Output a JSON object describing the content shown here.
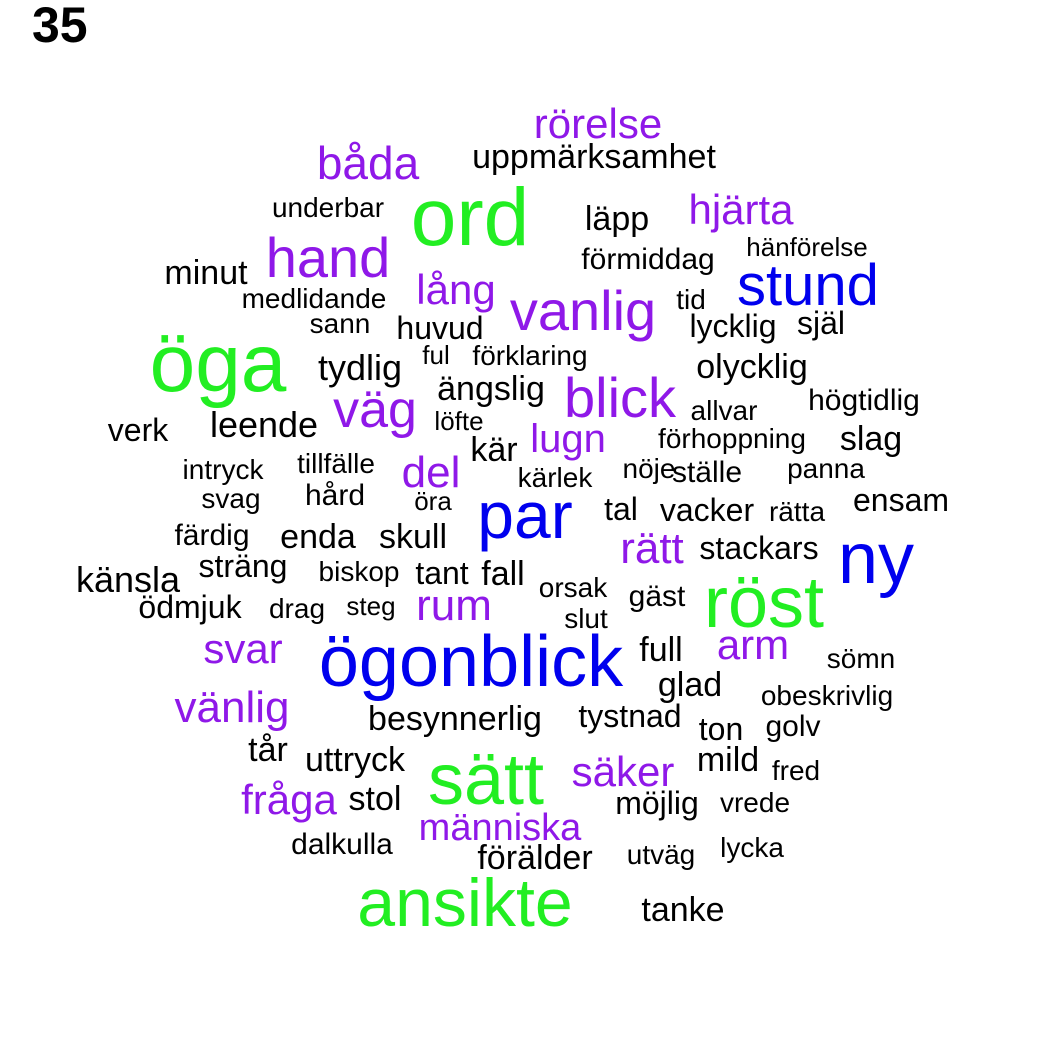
{
  "figure_label": "35",
  "colors": {
    "green": "#22ee22",
    "blue": "#0000ee",
    "purple": "#8f18e8",
    "black": "#000000"
  },
  "words": [
    {
      "text": "rörelse",
      "color": "purple"
    },
    {
      "text": "uppmärksamhet",
      "color": "black"
    },
    {
      "text": "båda",
      "color": "purple"
    },
    {
      "text": "ord",
      "color": "green"
    },
    {
      "text": "underbar",
      "color": "black"
    },
    {
      "text": "läpp",
      "color": "black"
    },
    {
      "text": "hjärta",
      "color": "purple"
    },
    {
      "text": "hand",
      "color": "purple"
    },
    {
      "text": "hänförelse",
      "color": "black"
    },
    {
      "text": "förmiddag",
      "color": "black"
    },
    {
      "text": "minut",
      "color": "black"
    },
    {
      "text": "stund",
      "color": "blue"
    },
    {
      "text": "lång",
      "color": "purple"
    },
    {
      "text": "medlidande",
      "color": "black"
    },
    {
      "text": "vanlig",
      "color": "purple"
    },
    {
      "text": "tid",
      "color": "black"
    },
    {
      "text": "sann",
      "color": "black"
    },
    {
      "text": "huvud",
      "color": "black"
    },
    {
      "text": "lycklig",
      "color": "black"
    },
    {
      "text": "själ",
      "color": "black"
    },
    {
      "text": "öga",
      "color": "green"
    },
    {
      "text": "ful",
      "color": "black"
    },
    {
      "text": "förklaring",
      "color": "black"
    },
    {
      "text": "tydlig",
      "color": "black"
    },
    {
      "text": "olycklig",
      "color": "black"
    },
    {
      "text": "ängslig",
      "color": "black"
    },
    {
      "text": "blick",
      "color": "purple"
    },
    {
      "text": "högtidlig",
      "color": "black"
    },
    {
      "text": "väg",
      "color": "purple"
    },
    {
      "text": "allvar",
      "color": "black"
    },
    {
      "text": "löfte",
      "color": "black"
    },
    {
      "text": "verk",
      "color": "black"
    },
    {
      "text": "leende",
      "color": "black"
    },
    {
      "text": "lugn",
      "color": "purple"
    },
    {
      "text": "förhoppning",
      "color": "black"
    },
    {
      "text": "slag",
      "color": "black"
    },
    {
      "text": "kär",
      "color": "black"
    },
    {
      "text": "intryck",
      "color": "black"
    },
    {
      "text": "tillfälle",
      "color": "black"
    },
    {
      "text": "del",
      "color": "purple"
    },
    {
      "text": "nöje",
      "color": "black"
    },
    {
      "text": "panna",
      "color": "black"
    },
    {
      "text": "kärlek",
      "color": "black"
    },
    {
      "text": "ställe",
      "color": "black"
    },
    {
      "text": "svag",
      "color": "black"
    },
    {
      "text": "hård",
      "color": "black"
    },
    {
      "text": "par",
      "color": "blue"
    },
    {
      "text": "ensam",
      "color": "black"
    },
    {
      "text": "öra",
      "color": "black"
    },
    {
      "text": "tal",
      "color": "black"
    },
    {
      "text": "vacker",
      "color": "black"
    },
    {
      "text": "rätta",
      "color": "black"
    },
    {
      "text": "färdig",
      "color": "black"
    },
    {
      "text": "enda",
      "color": "black"
    },
    {
      "text": "skull",
      "color": "black"
    },
    {
      "text": "rätt",
      "color": "purple"
    },
    {
      "text": "stackars",
      "color": "black"
    },
    {
      "text": "ny",
      "color": "blue"
    },
    {
      "text": "sträng",
      "color": "black"
    },
    {
      "text": "känsla",
      "color": "black"
    },
    {
      "text": "biskop",
      "color": "black"
    },
    {
      "text": "tant",
      "color": "black"
    },
    {
      "text": "fall",
      "color": "black"
    },
    {
      "text": "orsak",
      "color": "black"
    },
    {
      "text": "röst",
      "color": "green"
    },
    {
      "text": "gäst",
      "color": "black"
    },
    {
      "text": "ödmjuk",
      "color": "black"
    },
    {
      "text": "drag",
      "color": "black"
    },
    {
      "text": "steg",
      "color": "black"
    },
    {
      "text": "rum",
      "color": "purple"
    },
    {
      "text": "slut",
      "color": "black"
    },
    {
      "text": "svar",
      "color": "purple"
    },
    {
      "text": "ögonblick",
      "color": "blue"
    },
    {
      "text": "full",
      "color": "black"
    },
    {
      "text": "arm",
      "color": "purple"
    },
    {
      "text": "sömn",
      "color": "black"
    },
    {
      "text": "glad",
      "color": "black"
    },
    {
      "text": "obeskrivlig",
      "color": "black"
    },
    {
      "text": "vänlig",
      "color": "purple"
    },
    {
      "text": "besynnerlig",
      "color": "black"
    },
    {
      "text": "tystnad",
      "color": "black"
    },
    {
      "text": "ton",
      "color": "black"
    },
    {
      "text": "golv",
      "color": "black"
    },
    {
      "text": "tår",
      "color": "black"
    },
    {
      "text": "uttryck",
      "color": "black"
    },
    {
      "text": "sätt",
      "color": "green"
    },
    {
      "text": "mild",
      "color": "black"
    },
    {
      "text": "säker",
      "color": "purple"
    },
    {
      "text": "fred",
      "color": "black"
    },
    {
      "text": "fråga",
      "color": "purple"
    },
    {
      "text": "stol",
      "color": "black"
    },
    {
      "text": "möjlig",
      "color": "black"
    },
    {
      "text": "vrede",
      "color": "black"
    },
    {
      "text": "människa",
      "color": "purple"
    },
    {
      "text": "dalkulla",
      "color": "black"
    },
    {
      "text": "lycka",
      "color": "black"
    },
    {
      "text": "förälder",
      "color": "black"
    },
    {
      "text": "utväg",
      "color": "black"
    },
    {
      "text": "ansikte",
      "color": "green"
    },
    {
      "text": "tanke",
      "color": "black"
    }
  ]
}
